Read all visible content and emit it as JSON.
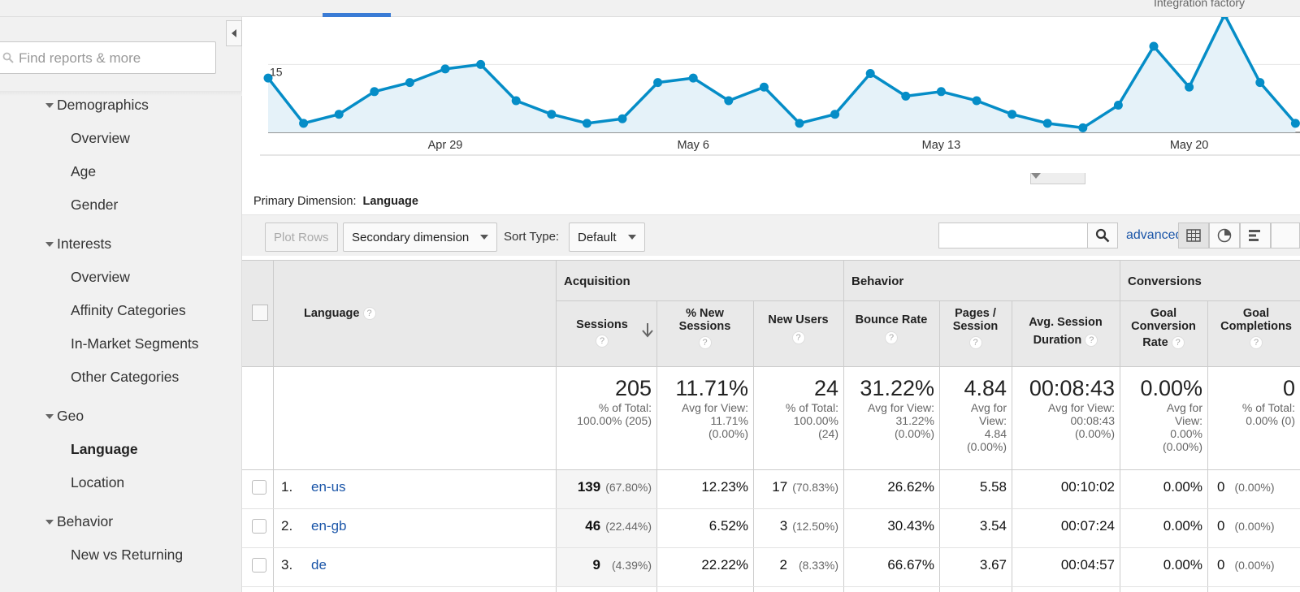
{
  "header": {
    "account": "Integration factory"
  },
  "sidebar": {
    "search_placeholder": "Find reports & more",
    "groups": [
      {
        "label": "Demographics",
        "items": [
          "Overview",
          "Age",
          "Gender"
        ]
      },
      {
        "label": "Interests",
        "items": [
          "Overview",
          "Affinity Categories",
          "In-Market Segments",
          "Other Categories"
        ]
      },
      {
        "label": "Geo",
        "items": [
          "Language",
          "Location"
        ]
      },
      {
        "label": "Behavior",
        "items": [
          "New vs Returning"
        ]
      }
    ],
    "active_item": "Language"
  },
  "chart_data": {
    "type": "line",
    "y_tick_label": "15",
    "x_tick_labels": [
      "Apr 29",
      "May 6",
      "May 13",
      "May 20"
    ],
    "values": [
      12,
      2,
      4,
      9,
      11,
      14,
      15,
      7,
      4,
      2,
      3,
      11,
      12,
      7,
      10,
      2,
      4,
      13,
      8,
      9,
      7,
      4,
      2,
      1,
      6,
      19,
      10,
      26,
      11,
      2
    ],
    "ylim": [
      0,
      26
    ],
    "color": "#058dc7",
    "fill": "#e5f2f9"
  },
  "primary_dimension": {
    "label": "Primary Dimension:",
    "value": "Language"
  },
  "toolbar": {
    "plot_rows": "Plot Rows",
    "secondary_dimension": "Secondary dimension",
    "sort_type_label": "Sort Type:",
    "sort_type_value": "Default",
    "advanced": "advanced"
  },
  "table": {
    "dimension_header": "Language",
    "groups": {
      "acquisition": "Acquisition",
      "behavior": "Behavior",
      "conversions": "Conversions"
    },
    "columns": {
      "sessions": "Sessions",
      "new_sessions_1": "% New",
      "new_sessions_2": "Sessions",
      "new_users": "New Users",
      "bounce_rate": "Bounce Rate",
      "pages_1": "Pages /",
      "pages_2": "Session",
      "duration_1": "Avg. Session",
      "duration_2": "Duration",
      "gcr_1": "Goal",
      "gcr_2": "Conversion",
      "gcr_3": "Rate",
      "gc_1": "Goal",
      "gc_2": "Completions"
    },
    "totals": {
      "sessions": {
        "value": "205",
        "l1": "% of Total:",
        "l2": "100.00% (205)"
      },
      "new_sessions": {
        "value": "11.71%",
        "l1": "Avg for View:",
        "l2": "11.71%",
        "l3": "(0.00%)"
      },
      "new_users": {
        "value": "24",
        "l1": "% of Total:",
        "l2": "100.00%",
        "l3": "(24)"
      },
      "bounce_rate": {
        "value": "31.22%",
        "l1": "Avg for View:",
        "l2": "31.22%",
        "l3": "(0.00%)"
      },
      "pages": {
        "value": "4.84",
        "l1": "Avg for",
        "l2": "View:",
        "l3": "4.84",
        "l4": "(0.00%)"
      },
      "duration": {
        "value": "00:08:43",
        "l1": "Avg for View:",
        "l2": "00:08:43",
        "l3": "(0.00%)"
      },
      "gcr": {
        "value": "0.00%",
        "l1": "Avg for",
        "l2": "View:",
        "l3": "0.00%",
        "l4": "(0.00%)"
      },
      "gc": {
        "value": "0",
        "l1": "% of Total:",
        "l2": "0.00% (0)"
      }
    },
    "rows": [
      {
        "num": "1.",
        "lang": "en-us",
        "sessions": "139",
        "sessions_pct": "(67.80%)",
        "new_sessions": "12.23%",
        "new_users": "17",
        "new_users_pct": "(70.83%)",
        "bounce": "26.62%",
        "pages": "5.58",
        "duration": "00:10:02",
        "gcr": "0.00%",
        "gc": "0",
        "gc_pct": "(0.00%)"
      },
      {
        "num": "2.",
        "lang": "en-gb",
        "sessions": "46",
        "sessions_pct": "(22.44%)",
        "new_sessions": "6.52%",
        "new_users": "3",
        "new_users_pct": "(12.50%)",
        "bounce": "30.43%",
        "pages": "3.54",
        "duration": "00:07:24",
        "gcr": "0.00%",
        "gc": "0",
        "gc_pct": "(0.00%)"
      },
      {
        "num": "3.",
        "lang": "de",
        "sessions": "9",
        "sessions_pct": "(4.39%)",
        "new_sessions": "22.22%",
        "new_users": "2",
        "new_users_pct": "(8.33%)",
        "bounce": "66.67%",
        "pages": "3.67",
        "duration": "00:04:57",
        "gcr": "0.00%",
        "gc": "0",
        "gc_pct": "(0.00%)"
      }
    ]
  }
}
